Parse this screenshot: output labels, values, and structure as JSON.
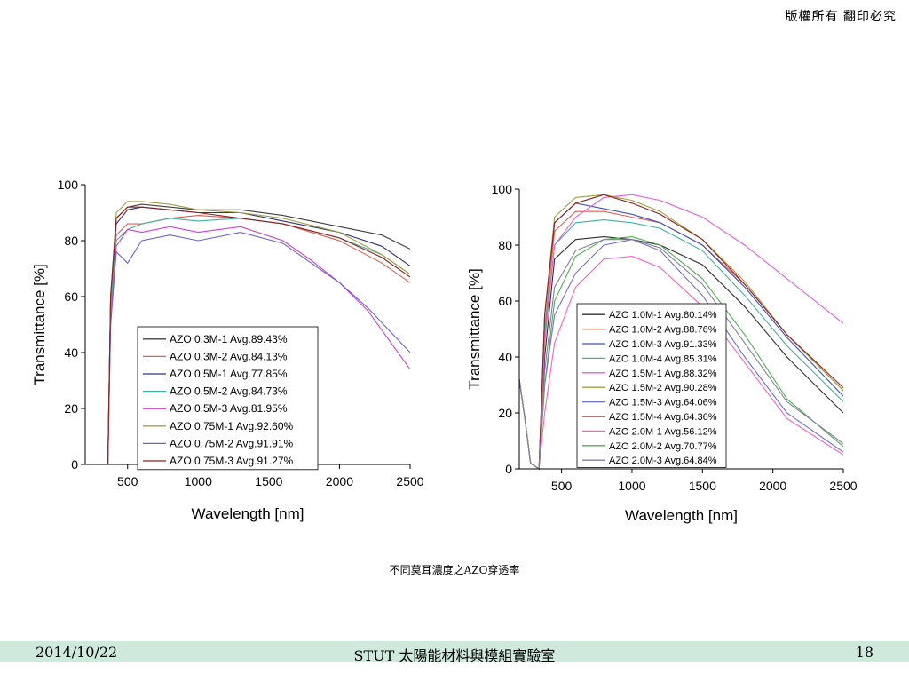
{
  "header": {
    "copyright": "版權所有 翻印必究"
  },
  "caption": "不同莫耳濃度之AZO穿透率",
  "footer": {
    "date": "2014/10/22",
    "title": "STUT 太陽能材料與模組實驗室",
    "page": "18"
  },
  "chart_data": [
    {
      "type": "line",
      "xlabel": "Wavelength [nm]",
      "ylabel": "Transmittance [%]",
      "xlim": [
        200,
        2500
      ],
      "ylim": [
        0,
        100
      ],
      "xticks": [
        500,
        1000,
        1500,
        2000,
        2500
      ],
      "yticks": [
        0,
        20,
        40,
        60,
        80,
        100
      ],
      "legend_position": "bottom-center",
      "series": [
        {
          "name": "AZO 0.3M-1 Avg.89.43%",
          "color": "#404040",
          "x": [
            250,
            360,
            380,
            420,
            500,
            600,
            800,
            1000,
            1300,
            1600,
            2000,
            2300,
            2500
          ],
          "y": [
            0,
            0,
            60,
            88,
            92,
            93,
            92,
            91,
            91,
            89,
            85,
            82,
            77
          ]
        },
        {
          "name": "AZO 0.3M-2 Avg.84.13%",
          "color": "#e06050",
          "x": [
            250,
            360,
            380,
            420,
            500,
            600,
            800,
            1000,
            1300,
            1600,
            2000,
            2300,
            2500
          ],
          "y": [
            0,
            0,
            55,
            82,
            86,
            86,
            88,
            89,
            88,
            86,
            80,
            72,
            65
          ]
        },
        {
          "name": "AZO 0.5M-1 Avg.77.85%",
          "color": "#303080",
          "x": [
            250,
            360,
            380,
            420,
            500,
            600,
            800,
            1000,
            1300,
            1600,
            2000,
            2300,
            2500
          ],
          "y": [
            0,
            0,
            60,
            86,
            91,
            92,
            91,
            90,
            90,
            87,
            83,
            78,
            71
          ]
        },
        {
          "name": "AZO 0.5M-2 Avg.84.73%",
          "color": "#40b0a0",
          "x": [
            250,
            360,
            380,
            420,
            500,
            600,
            800,
            1000,
            1300,
            1600,
            2000,
            2300,
            2500
          ],
          "y": [
            0,
            0,
            55,
            80,
            84,
            86,
            88,
            87,
            88,
            86,
            81,
            75,
            68
          ]
        },
        {
          "name": "AZO 0.5M-3 Avg.81.95%",
          "color": "#d040d0",
          "x": [
            250,
            360,
            380,
            420,
            500,
            600,
            800,
            1000,
            1300,
            1600,
            1800,
            2000,
            2200,
            2500
          ],
          "y": [
            0,
            0,
            50,
            78,
            84,
            83,
            85,
            83,
            85,
            80,
            73,
            65,
            55,
            34
          ]
        },
        {
          "name": "AZO 0.75M-1 Avg.92.60%",
          "color": "#a0a040",
          "x": [
            250,
            360,
            380,
            420,
            500,
            600,
            800,
            1000,
            1300,
            1600,
            2000,
            2300,
            2500
          ],
          "y": [
            0,
            0,
            60,
            90,
            94,
            94,
            93,
            91,
            90,
            88,
            83,
            75,
            68
          ]
        },
        {
          "name": "AZO 0.75M-2 Avg.91.91%",
          "color": "#7060d0",
          "x": [
            250,
            360,
            380,
            420,
            500,
            600,
            800,
            1000,
            1300,
            1600,
            1800,
            2000,
            2200,
            2500
          ],
          "y": [
            0,
            0,
            50,
            76,
            72,
            80,
            82,
            80,
            83,
            79,
            72,
            65,
            56,
            40
          ]
        },
        {
          "name": "AZO 0.75M-3 Avg.91.27%",
          "color": "#902020",
          "x": [
            250,
            360,
            380,
            420,
            500,
            600,
            800,
            1000,
            1300,
            1600,
            2000,
            2300,
            2500
          ],
          "y": [
            0,
            0,
            60,
            88,
            92,
            92,
            91,
            90,
            88,
            86,
            81,
            74,
            67
          ]
        }
      ]
    },
    {
      "type": "line",
      "xlabel": "Wavelength [nm]",
      "ylabel": "Transmittance [%]",
      "xlim": [
        200,
        2500
      ],
      "ylim": [
        0,
        100
      ],
      "xticks": [
        500,
        1000,
        1500,
        2000,
        2500
      ],
      "yticks": [
        0,
        20,
        40,
        60,
        80,
        100
      ],
      "legend_position": "bottom-center",
      "series": [
        {
          "name": "AZO 1.0M-1 Avg.80.14%",
          "color": "#303030",
          "x": [
            200,
            240,
            280,
            340,
            380,
            450,
            600,
            800,
            1000,
            1200,
            1500,
            1800,
            2100,
            2500
          ],
          "y": [
            32,
            18,
            2,
            0,
            40,
            75,
            82,
            83,
            82,
            80,
            73,
            58,
            40,
            20
          ]
        },
        {
          "name": "AZO 1.0M-2 Avg.88.76%",
          "color": "#e06050",
          "x": [
            200,
            240,
            280,
            340,
            380,
            450,
            600,
            800,
            1000,
            1200,
            1500,
            1800,
            2100,
            2500
          ],
          "y": [
            32,
            18,
            2,
            0,
            50,
            85,
            92,
            92,
            90,
            88,
            80,
            66,
            48,
            28
          ]
        },
        {
          "name": "AZO 1.0M-3 Avg.91.33%",
          "color": "#4050c0",
          "x": [
            200,
            240,
            280,
            340,
            380,
            450,
            600,
            800,
            1000,
            1200,
            1500,
            1800,
            2100,
            2500
          ],
          "y": [
            32,
            18,
            2,
            0,
            55,
            88,
            95,
            93,
            91,
            88,
            80,
            65,
            47,
            26
          ]
        },
        {
          "name": "AZO 1.0M-4 Avg.85.31%",
          "color": "#40b0a0",
          "x": [
            200,
            240,
            280,
            340,
            380,
            450,
            600,
            800,
            1000,
            1200,
            1500,
            1800,
            2100,
            2500
          ],
          "y": [
            32,
            18,
            2,
            0,
            48,
            80,
            88,
            89,
            88,
            86,
            78,
            62,
            44,
            24
          ]
        },
        {
          "name": "AZO 1.5M-1 Avg.88.32%",
          "color": "#e060e0",
          "x": [
            200,
            240,
            280,
            340,
            380,
            450,
            600,
            800,
            1000,
            1200,
            1500,
            1800,
            2100,
            2500
          ],
          "y": [
            32,
            18,
            2,
            0,
            45,
            80,
            90,
            97,
            98,
            96,
            90,
            80,
            68,
            52
          ]
        },
        {
          "name": "AZO 1.5M-2 Avg.90.28%",
          "color": "#a0a040",
          "x": [
            200,
            240,
            280,
            340,
            380,
            450,
            600,
            800,
            1000,
            1200,
            1500,
            1800,
            2100,
            2500
          ],
          "y": [
            32,
            18,
            2,
            0,
            55,
            90,
            97,
            98,
            96,
            92,
            82,
            67,
            48,
            28
          ]
        },
        {
          "name": "AZO 1.5M-3 Avg.64.06%",
          "color": "#7070d0",
          "x": [
            200,
            240,
            280,
            340,
            380,
            450,
            600,
            800,
            1000,
            1200,
            1500,
            1800,
            2100,
            2500
          ],
          "y": [
            32,
            18,
            2,
            0,
            30,
            55,
            70,
            80,
            82,
            78,
            62,
            40,
            20,
            6
          ]
        },
        {
          "name": "AZO 1.5M-4 Avg.64.36%",
          "color": "#902020",
          "x": [
            200,
            240,
            280,
            340,
            380,
            450,
            600,
            800,
            1000,
            1200,
            1500,
            1800,
            2100,
            2500
          ],
          "y": [
            32,
            18,
            2,
            0,
            55,
            88,
            95,
            98,
            95,
            91,
            82,
            66,
            48,
            29
          ]
        },
        {
          "name": "AZO 2.0M-1 Avg.56.12%",
          "color": "#ff60c0",
          "x": [
            200,
            240,
            280,
            340,
            380,
            450,
            600,
            800,
            1000,
            1200,
            1500,
            1800,
            2100,
            2500
          ],
          "y": [
            32,
            18,
            2,
            0,
            20,
            45,
            65,
            75,
            76,
            72,
            58,
            38,
            18,
            5
          ]
        },
        {
          "name": "AZO 2.0M-2 Avg.70.77%",
          "color": "#50b050",
          "x": [
            200,
            240,
            280,
            340,
            380,
            450,
            600,
            800,
            1000,
            1200,
            1500,
            1800,
            2100,
            2500
          ],
          "y": [
            32,
            18,
            2,
            0,
            30,
            60,
            76,
            82,
            83,
            80,
            68,
            48,
            25,
            8
          ]
        },
        {
          "name": "AZO 2.0M-3 Avg.64.84%",
          "color": "#8080a0",
          "x": [
            200,
            240,
            280,
            340,
            380,
            450,
            600,
            800,
            1000,
            1200,
            1500,
            1800,
            2100,
            2500
          ],
          "y": [
            32,
            18,
            2,
            0,
            35,
            65,
            78,
            82,
            82,
            79,
            66,
            45,
            24,
            9
          ]
        }
      ]
    }
  ]
}
